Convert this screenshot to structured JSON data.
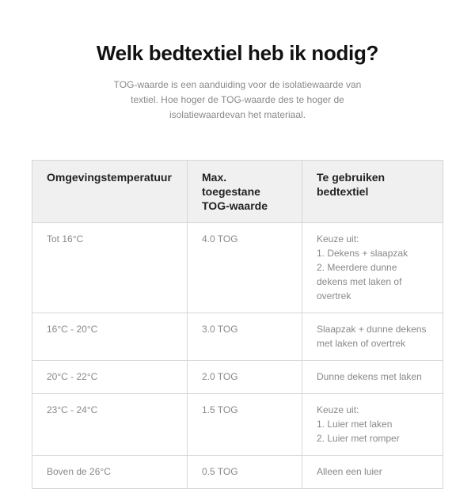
{
  "title": "Welk bedtextiel heb ik nodig?",
  "intro": "TOG-waarde is een aanduiding voor de isolatiewaarde van textiel. Hoe hoger de TOG-waarde des te hoger de isolatiewaardevan het materiaal.",
  "table": {
    "headers": [
      "Omgevingstemperatuur",
      "Max. toegestane TOG-waarde",
      "Te gebruiken bedtextiel"
    ],
    "rows": [
      {
        "temp": "Tot 16°C",
        "tog": "4.0 TOG",
        "textiel": [
          "Keuze uit:",
          "1. Dekens + slaapzak",
          "2. Meerdere dunne dekens met laken of overtrek"
        ]
      },
      {
        "temp": "16°C - 20°C",
        "tog": "3.0 TOG",
        "textiel": [
          "Slaapzak + dunne dekens met laken of overtrek"
        ]
      },
      {
        "temp": "20°C - 22°C",
        "tog": "2.0 TOG",
        "textiel": [
          "Dunne dekens met laken"
        ]
      },
      {
        "temp": "23°C - 24°C",
        "tog": "1.5 TOG",
        "textiel": [
          "Keuze uit:",
          "1. Luier met laken",
          "2. Luier met romper"
        ]
      },
      {
        "temp": "Boven de 26°C",
        "tog": "0.5 TOG",
        "textiel": [
          "Alleen een luier"
        ]
      }
    ]
  }
}
